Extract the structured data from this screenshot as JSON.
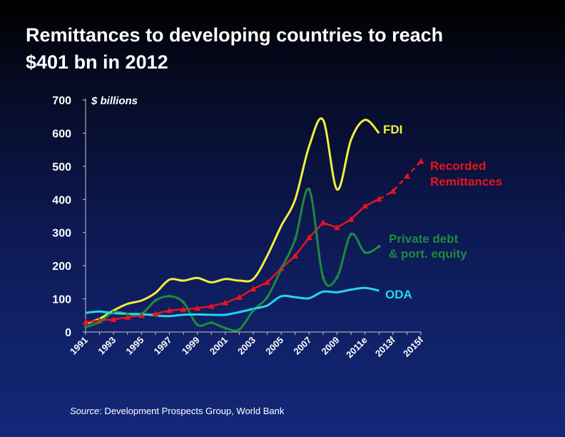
{
  "slide": {
    "title_line1": "Remittances to developing countries to reach",
    "title_line2": "$401 bn in 2012",
    "source_label": "Source",
    "source_text": ": Development Prospects Group, World Bank"
  },
  "chart_data": {
    "type": "line",
    "unit_label": "$ billions",
    "ylim": [
      0,
      700
    ],
    "y_ticks": [
      0,
      100,
      200,
      300,
      400,
      500,
      600,
      700
    ],
    "x_tick_labels": [
      "1991",
      "1993",
      "1995",
      "1997",
      "1999",
      "2001",
      "2003",
      "2005",
      "2007",
      "2009",
      "2011e",
      "2013f",
      "2015f"
    ],
    "x_tick_years": [
      1991,
      1993,
      1995,
      1997,
      1999,
      2001,
      2003,
      2005,
      2007,
      2009,
      2011,
      2013,
      2015
    ],
    "grid": false,
    "legend": "inline labels at line ends",
    "series": [
      {
        "name": "FDI",
        "color": "#f2ef3c",
        "style": "solid",
        "x": [
          1991,
          1992,
          1993,
          1994,
          1995,
          1996,
          1997,
          1998,
          1999,
          2000,
          2001,
          2002,
          2003,
          2004,
          2005,
          2006,
          2007,
          2008,
          2009,
          2010,
          2011,
          2012
        ],
        "values": [
          25,
          40,
          65,
          85,
          95,
          118,
          158,
          155,
          163,
          150,
          160,
          155,
          160,
          230,
          320,
          400,
          560,
          640,
          430,
          580,
          640,
          600
        ]
      },
      {
        "name": "Recorded Remittances",
        "color": "#e8141e",
        "style": "solid-then-dashed",
        "x": [
          1991,
          1992,
          1993,
          1994,
          1995,
          1996,
          1997,
          1998,
          1999,
          2000,
          2001,
          2002,
          2003,
          2004,
          2005,
          2006,
          2007,
          2008,
          2009,
          2010,
          2011,
          2012,
          2013,
          2014,
          2015
        ],
        "values": [
          30,
          35,
          38,
          45,
          50,
          55,
          65,
          68,
          72,
          78,
          88,
          105,
          130,
          150,
          192,
          230,
          285,
          330,
          315,
          340,
          380,
          401,
          425,
          470,
          515
        ],
        "dashed_from_index": 21
      },
      {
        "name": "Private debt & port. equity",
        "color": "#1d8a3c",
        "style": "solid",
        "x": [
          1991,
          1992,
          1993,
          1994,
          1995,
          1996,
          1997,
          1998,
          1999,
          2000,
          2001,
          2002,
          2003,
          2004,
          2005,
          2006,
          2007,
          2008,
          2009,
          2010,
          2011,
          2012
        ],
        "values": [
          15,
          30,
          60,
          55,
          55,
          95,
          108,
          90,
          22,
          28,
          12,
          8,
          65,
          105,
          190,
          280,
          430,
          165,
          165,
          295,
          240,
          258
        ]
      },
      {
        "name": "ODA",
        "color": "#22d8ee",
        "style": "solid",
        "x": [
          1991,
          1992,
          1993,
          1994,
          1995,
          1996,
          1997,
          1998,
          1999,
          2000,
          2001,
          2002,
          2003,
          2004,
          2005,
          2006,
          2007,
          2008,
          2009,
          2010,
          2011,
          2012
        ],
        "values": [
          58,
          62,
          57,
          55,
          54,
          50,
          48,
          52,
          53,
          52,
          52,
          60,
          70,
          80,
          108,
          105,
          102,
          122,
          120,
          128,
          133,
          125
        ]
      }
    ],
    "labels": {
      "fdi": "FDI",
      "remit_1": "Recorded",
      "remit_2": "Remittances",
      "debt_1": "Private debt",
      "debt_2": "& port. equity",
      "oda": "ODA"
    }
  }
}
